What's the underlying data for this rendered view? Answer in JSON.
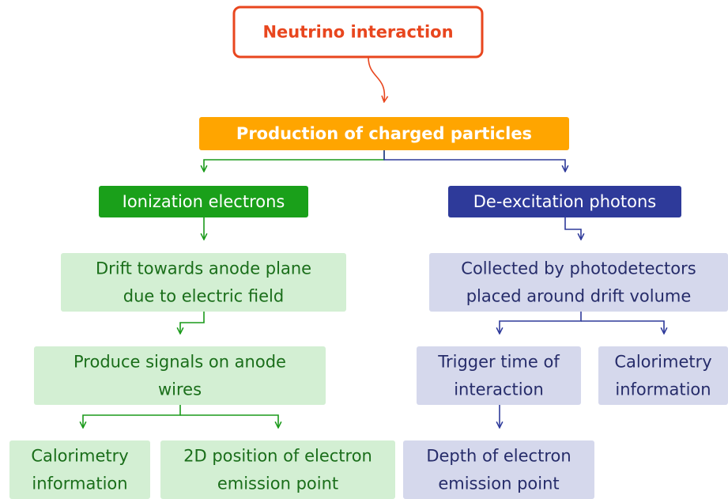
{
  "nodes": [
    {
      "lines": [
        "Neutrino interaction"
      ]
    },
    {
      "lines": [
        "Production of charged particles"
      ]
    },
    {
      "lines": [
        "Ionization electrons"
      ]
    },
    {
      "lines": [
        "De-excitation photons"
      ]
    },
    {
      "lines": [
        "Drift towards anode plane",
        "due to electric field"
      ]
    },
    {
      "lines": [
        "Collected by photodetectors",
        "placed around  drift volume"
      ]
    },
    {
      "lines": [
        "Produce signals on anode",
        "wires"
      ]
    },
    {
      "lines": [
        "Trigger time of",
        "interaction"
      ]
    },
    {
      "lines": [
        "Calorimetry",
        "information"
      ]
    },
    {
      "lines": [
        "Calorimetry",
        "information"
      ]
    },
    {
      "lines": [
        "2D position of electron",
        "emission point"
      ]
    },
    {
      "lines": [
        "Depth of electron",
        "emission point"
      ]
    }
  ]
}
